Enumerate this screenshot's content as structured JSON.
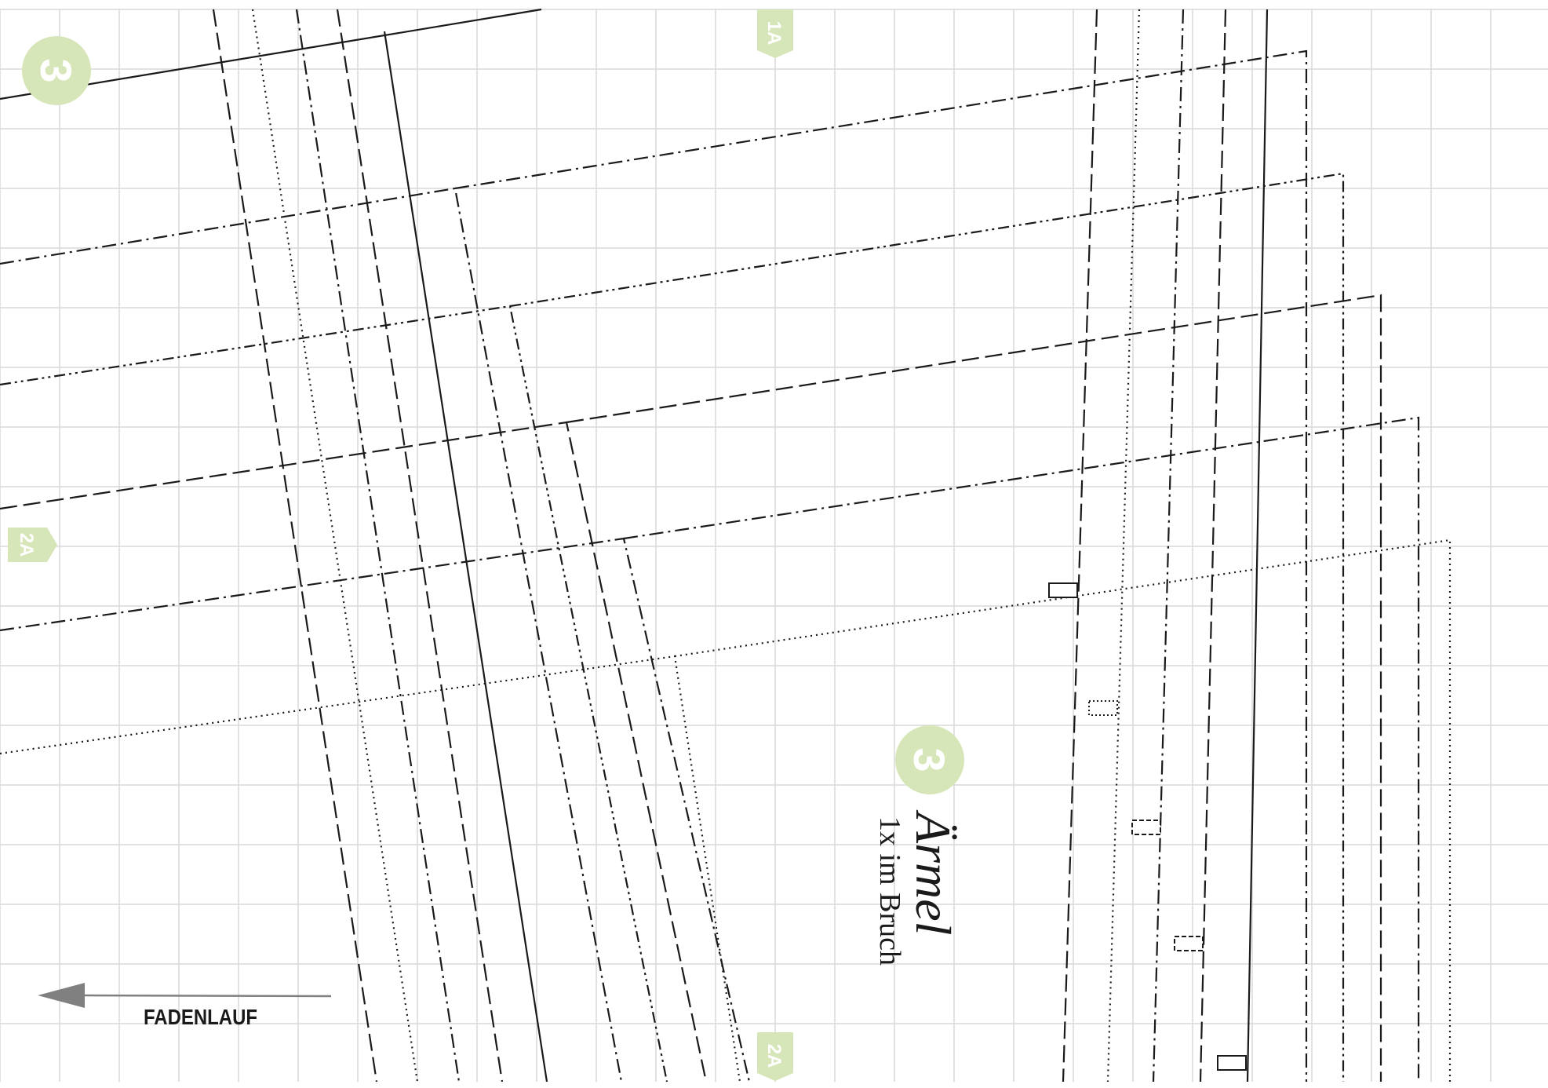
{
  "sheet": {
    "piece_number": "3",
    "piece_title": "Ärmel",
    "piece_instruction": "1x im Bruch",
    "grainline_label": "FADENLAUF",
    "match_marks": [
      "1A",
      "2A",
      "2A"
    ]
  },
  "colors": {
    "grid": "#d9d9d9",
    "line": "#1a1a1a",
    "badge": "#d7e6b8",
    "badge_text": "#ffffff",
    "arrow": "#808080"
  }
}
